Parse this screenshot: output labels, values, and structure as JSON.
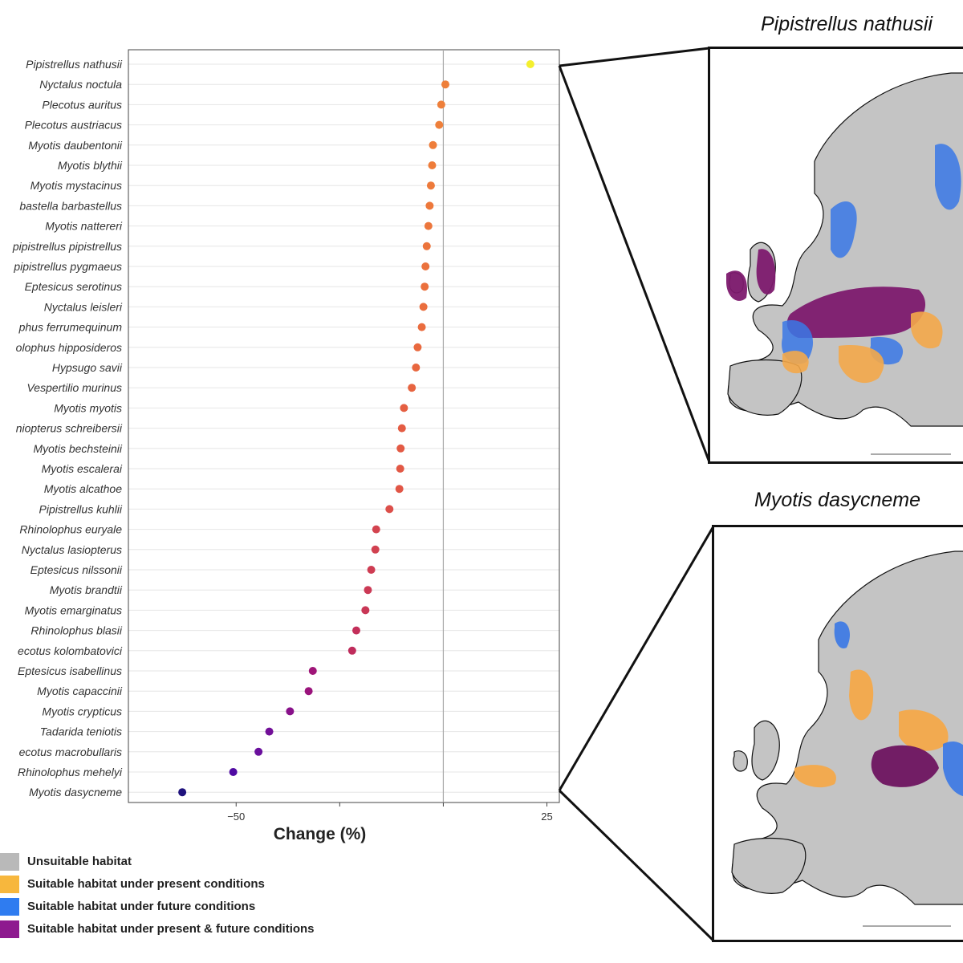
{
  "chart_data": {
    "type": "scatter",
    "orientation": "horizontal-dot-plot",
    "xlabel": "Change (%)",
    "x_tick_labels": [
      "−50",
      "25"
    ],
    "xlim": [
      -76,
      28
    ],
    "reference_line": 0,
    "categories": [
      "Pipistrellus nathusii",
      "Nyctalus noctula",
      "Plecotus auritus",
      "Plecotus austriacus",
      "Myotis daubentonii",
      "Myotis blythii",
      "Myotis mystacinus",
      "Barbastella barbastellus",
      "Myotis nattereri",
      "Pipistrellus pipistrellus",
      "Pipistrellus pygmaeus",
      "Eptesicus serotinus",
      "Nyctalus leisleri",
      "Rhinolophus ferrumequinum",
      "Rhinolophus hipposideros",
      "Hypsugo savii",
      "Vespertilio murinus",
      "Myotis myotis",
      "Miniopterus schreibersii",
      "Myotis bechsteinii",
      "Myotis escalerai",
      "Myotis alcathoe",
      "Pipistrellus kuhlii",
      "Rhinolophus euryale",
      "Nyctalus lasiopterus",
      "Eptesicus nilssonii",
      "Myotis brandtii",
      "Myotis emarginatus",
      "Rhinolophus blasii",
      "Plecotus kolombatovici",
      "Eptesicus isabellinus",
      "Myotis capaccinii",
      "Myotis crypticus",
      "Tadarida teniotis",
      "Plecotus macrobullaris",
      "Rhinolophus mehelyi",
      "Myotis dasycneme"
    ],
    "category_labels_visible": [
      "Pipistrellus nathusii",
      "Nyctalus noctula",
      "Plecotus auritus",
      "Plecotus austriacus",
      "Myotis daubentonii",
      "Myotis blythii",
      "Myotis mystacinus",
      "bastella barbastellus",
      "Myotis nattereri",
      "pipistrellus pipistrellus",
      "pipistrellus pygmaeus",
      "Eptesicus serotinus",
      "Nyctalus leisleri",
      "phus ferrumequinum",
      "olophus hipposideros",
      "Hypsugo savii",
      "Vespertilio murinus",
      "Myotis myotis",
      "niopterus schreibersii",
      "Myotis bechsteinii",
      "Myotis escalerai",
      "Myotis alcathoe",
      "Pipistrellus kuhlii",
      "Rhinolophus euryale",
      "Nyctalus lasiopterus",
      "Eptesicus nilssonii",
      "Myotis brandtii",
      "Myotis emarginatus",
      "Rhinolophus blasii",
      "ecotus kolombatovici",
      "Eptesicus isabellinus",
      "Myotis capaccinii",
      "Myotis crypticus",
      "Tadarida teniotis",
      "ecotus macrobullaris",
      "Rhinolophus mehelyi",
      "Myotis dasycneme"
    ],
    "values": [
      21,
      0.5,
      -0.5,
      -1,
      -2.5,
      -2.7,
      -3,
      -3.3,
      -3.6,
      -4,
      -4.3,
      -4.5,
      -4.8,
      -5.2,
      -6.2,
      -6.6,
      -7.6,
      -9.5,
      -10,
      -10.3,
      -10.4,
      -10.6,
      -13,
      -16.2,
      -16.4,
      -17.4,
      -18.2,
      -18.8,
      -21,
      -22,
      -31.5,
      -32.5,
      -37,
      -42,
      -44.6,
      -50.7,
      -63
    ],
    "point_colors": [
      "#f4ef2e",
      "#ee7f3a",
      "#ee7f3a",
      "#ee7f3a",
      "#ee7d3a",
      "#ee7c3a",
      "#ed7a3b",
      "#ed783b",
      "#ec763c",
      "#ec743c",
      "#eb723d",
      "#eb703d",
      "#ea6e3e",
      "#ea6c3e",
      "#e9693f",
      "#e8673f",
      "#e76440",
      "#e55f42",
      "#e45c43",
      "#e35a44",
      "#e25845",
      "#e15646",
      "#dc4f4a",
      "#d3434f",
      "#d14150",
      "#ce3c52",
      "#cb3955",
      "#c93756",
      "#c32f5a",
      "#bf2c5c",
      "#9f1578",
      "#9a137c",
      "#88118a",
      "#720f98",
      "#6a0f9d",
      "#4f0aa2",
      "#1f127d"
    ]
  },
  "legend": {
    "items": [
      {
        "label": "Unsuitable habitat",
        "color": "#b9b9b9"
      },
      {
        "label": "Suitable habitat under present conditions",
        "color": "#f7b73d"
      },
      {
        "label": "Suitable habitat under future conditions",
        "color": "#2f7cf0"
      },
      {
        "label": "Suitable habitat under present & future conditions",
        "color": "#8e1a8f"
      }
    ]
  },
  "maps": [
    {
      "title": "Pipistrellus nathusii"
    },
    {
      "title": "Myotis dasycneme"
    }
  ]
}
